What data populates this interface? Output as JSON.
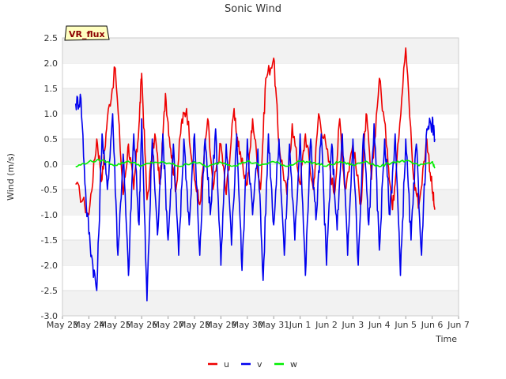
{
  "chart_data": {
    "type": "line",
    "title": "Sonic Wind",
    "xlabel": "Time",
    "ylabel": "Wind (m/s)",
    "ylim": [
      -3.0,
      2.5
    ],
    "yticks": [
      "-3.0",
      "-2.5",
      "-2.0",
      "-1.5",
      "-1.0",
      "-0.5",
      "0.0",
      "0.5",
      "1.0",
      "1.5",
      "2.0",
      "2.5"
    ],
    "ytick_values": [
      -3.0,
      -2.5,
      -2.0,
      -1.5,
      -1.0,
      -0.5,
      0.0,
      0.5,
      1.0,
      1.5,
      2.0,
      2.5
    ],
    "xlim": [
      0,
      15
    ],
    "xticks": [
      "May 23",
      "May 24",
      "May 25",
      "May 26",
      "May 27",
      "May 28",
      "May 29",
      "May 30",
      "May 31",
      "Jun 1",
      "Jun 2",
      "Jun 3",
      "Jun 4",
      "Jun 5",
      "Jun 6",
      "Jun 7"
    ],
    "xtick_values": [
      0,
      1,
      2,
      3,
      4,
      5,
      6,
      7,
      8,
      9,
      10,
      11,
      12,
      13,
      14,
      15
    ],
    "badge": "VR_flux",
    "grid": "horizontal bands",
    "legend_position": "bottom-center",
    "series": [
      {
        "name": "u",
        "color": "#ee0000",
        "x": [
          0.5,
          1.0,
          1.3,
          1.5,
          1.7,
          2.0,
          2.3,
          2.5,
          2.7,
          2.9,
          3.0,
          3.2,
          3.5,
          3.7,
          3.9,
          4.1,
          4.3,
          4.5,
          4.7,
          5.0,
          5.2,
          5.5,
          5.7,
          6.0,
          6.2,
          6.5,
          6.7,
          7.0,
          7.2,
          7.5,
          7.7,
          8.0,
          8.2,
          8.5,
          8.7,
          9.0,
          9.2,
          9.5,
          9.7,
          10.0,
          10.3,
          10.5,
          10.7,
          11.0,
          11.3,
          11.5,
          11.7,
          12.0,
          12.3,
          12.5,
          12.7,
          13.0,
          13.3,
          13.5,
          13.8,
          14.0,
          14.1
        ],
        "y": [
          -0.4,
          -1.0,
          0.5,
          -0.3,
          0.9,
          1.9,
          -0.6,
          0.4,
          -0.5,
          0.8,
          1.8,
          -0.7,
          0.6,
          -0.4,
          1.4,
          0.3,
          -0.5,
          0.8,
          1.1,
          -0.3,
          -0.8,
          0.9,
          -0.5,
          0.4,
          -0.6,
          1.1,
          0.2,
          -0.4,
          0.9,
          -0.5,
          1.7,
          2.1,
          0.4,
          -0.6,
          0.8,
          -0.4,
          0.6,
          -0.5,
          1.0,
          0.3,
          -0.6,
          0.9,
          -0.5,
          0.4,
          -0.8,
          1.0,
          -0.3,
          1.7,
          0.3,
          -0.9,
          0.4,
          2.3,
          -0.3,
          -0.8,
          0.5,
          -0.5,
          -0.9
        ]
      },
      {
        "name": "v",
        "color": "#0000ee",
        "x": [
          0.5,
          0.7,
          0.9,
          1.1,
          1.3,
          1.5,
          1.7,
          1.9,
          2.1,
          2.3,
          2.5,
          2.7,
          2.9,
          3.0,
          3.2,
          3.4,
          3.6,
          3.8,
          4.0,
          4.2,
          4.4,
          4.6,
          4.8,
          5.0,
          5.2,
          5.4,
          5.6,
          5.8,
          6.0,
          6.2,
          6.4,
          6.6,
          6.8,
          7.0,
          7.2,
          7.4,
          7.6,
          7.8,
          8.0,
          8.2,
          8.4,
          8.6,
          8.8,
          9.0,
          9.2,
          9.4,
          9.6,
          9.8,
          10.0,
          10.2,
          10.4,
          10.6,
          10.8,
          11.0,
          11.2,
          11.4,
          11.6,
          11.8,
          12.0,
          12.2,
          12.4,
          12.6,
          12.8,
          13.0,
          13.2,
          13.4,
          13.6,
          13.8,
          14.0,
          14.1
        ],
        "y": [
          1.2,
          1.3,
          -0.8,
          -1.8,
          -2.5,
          0.6,
          -0.5,
          1.0,
          -1.8,
          0.2,
          -2.2,
          0.6,
          -1.2,
          0.9,
          -2.7,
          0.5,
          -1.4,
          0.6,
          -1.5,
          0.4,
          -1.8,
          0.5,
          -1.2,
          0.6,
          -1.8,
          0.5,
          -1.0,
          0.7,
          -2.0,
          0.4,
          -1.6,
          0.6,
          -2.1,
          0.5,
          -1.0,
          0.3,
          -2.3,
          0.6,
          -1.2,
          0.5,
          -1.8,
          0.4,
          -1.5,
          0.6,
          -2.2,
          0.5,
          -1.1,
          0.6,
          -2.0,
          0.4,
          -1.3,
          0.6,
          -1.8,
          0.5,
          -2.0,
          0.6,
          -1.2,
          0.8,
          -1.7,
          0.5,
          -1.0,
          0.6,
          -2.2,
          0.5,
          -1.5,
          0.4,
          -1.8,
          0.7,
          0.8,
          0.5
        ],
        "noise": 0.18
      },
      {
        "name": "w",
        "color": "#00ee00",
        "x": [
          0.5,
          1.0,
          1.5,
          2.0,
          2.5,
          3.0,
          3.5,
          4.0,
          4.5,
          5.0,
          5.5,
          6.0,
          6.5,
          7.0,
          7.5,
          8.0,
          8.5,
          9.0,
          9.5,
          10.0,
          10.5,
          11.0,
          11.5,
          12.0,
          12.5,
          13.0,
          13.5,
          14.0,
          14.1
        ],
        "y": [
          -0.05,
          0.05,
          0.08,
          -0.02,
          0.06,
          -0.03,
          0.04,
          0.02,
          -0.04,
          0.05,
          -0.05,
          0.04,
          -0.03,
          0.06,
          -0.02,
          0.05,
          -0.04,
          0.06,
          0.03,
          -0.04,
          0.05,
          -0.02,
          0.06,
          -0.05,
          0.04,
          0.07,
          -0.03,
          0.05,
          -0.08
        ],
        "noise": 0.025
      }
    ]
  }
}
